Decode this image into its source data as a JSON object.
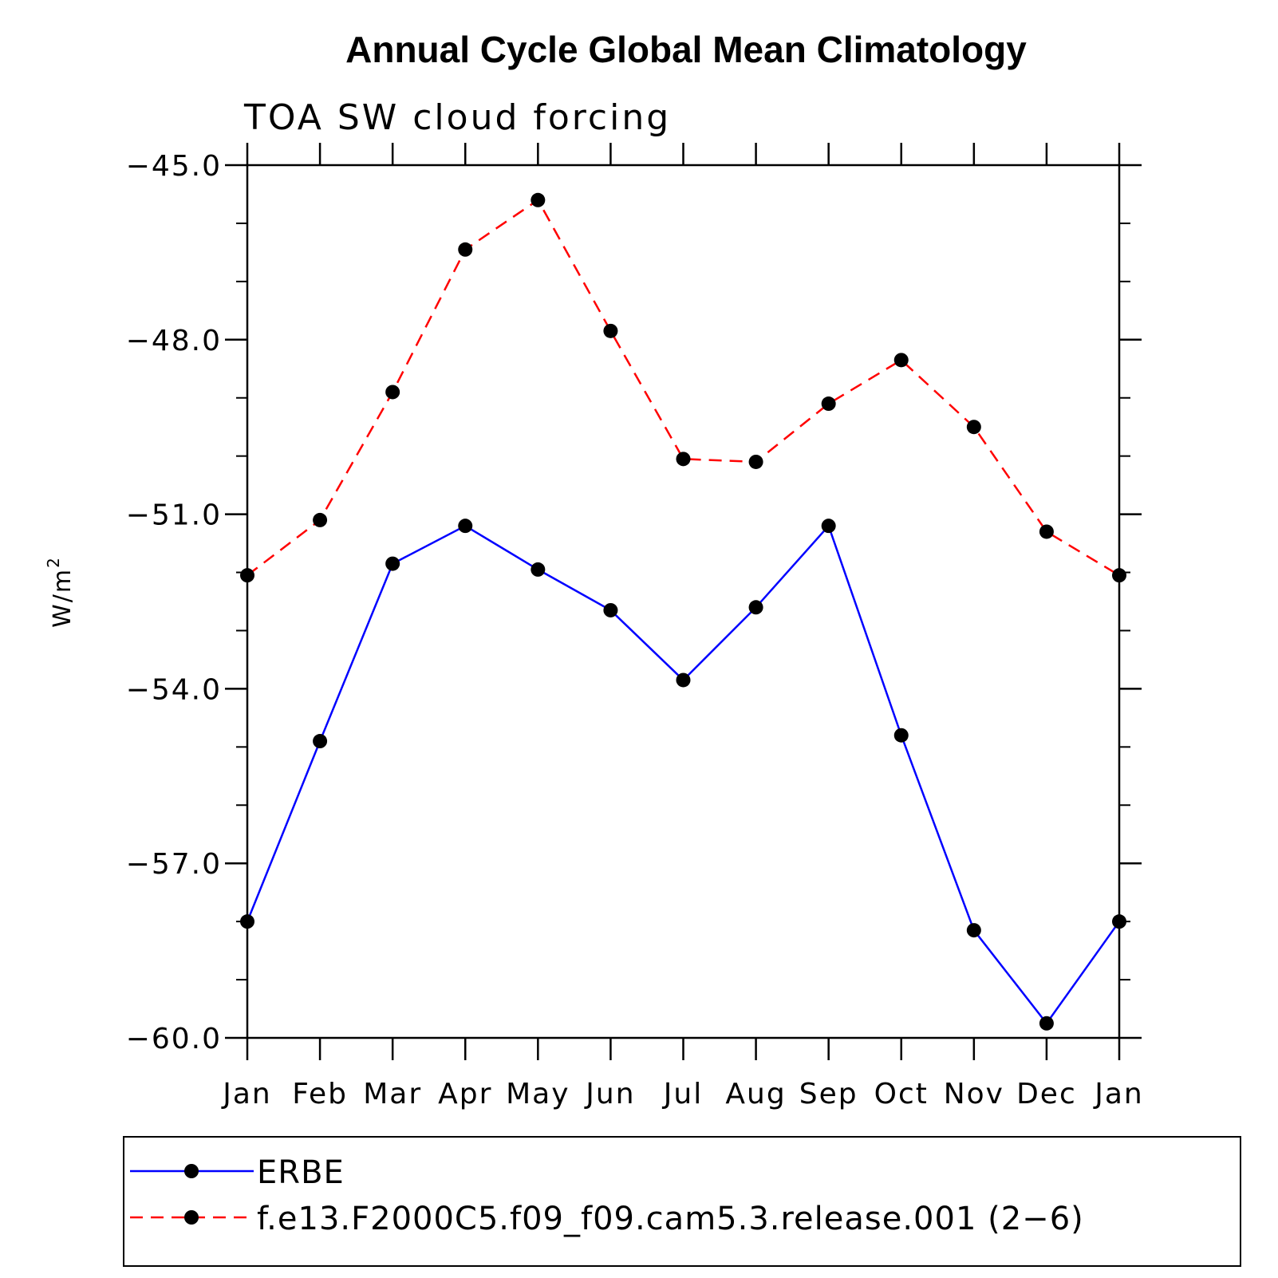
{
  "chart_data": {
    "type": "line",
    "title": "Annual Cycle Global Mean Climatology",
    "subtitle": "TOA SW cloud forcing",
    "ylabel": "W/m",
    "ylabel_superscript": "2",
    "xlabel": "",
    "categories": [
      "Jan",
      "Feb",
      "Mar",
      "Apr",
      "May",
      "Jun",
      "Jul",
      "Aug",
      "Sep",
      "Oct",
      "Nov",
      "Dec",
      "Jan"
    ],
    "ylim": [
      -60.0,
      -45.0
    ],
    "yticks": [
      -45.0,
      -48.0,
      -51.0,
      -54.0,
      -57.0,
      -60.0
    ],
    "ytick_labels": [
      "−45.0",
      "−48.0",
      "−51.0",
      "−54.0",
      "−57.0",
      "−60.0"
    ],
    "ytick_minor_step": 1.0,
    "grid": false,
    "legend_position": "bottom",
    "series": [
      {
        "name": "ERBE",
        "color": "#0000ff",
        "dash": "solid",
        "marker": "filled-circle",
        "values": [
          -58.0,
          -54.9,
          -51.85,
          -51.2,
          -51.95,
          -52.65,
          -53.85,
          -52.6,
          -51.2,
          -54.8,
          -58.15,
          -59.75,
          -58.0
        ]
      },
      {
        "name": "f.e13.F2000C5.f09_f09.cam5.3.release.001 (2−6)",
        "color": "#ff0000",
        "dash": "dashed",
        "marker": "filled-circle",
        "values": [
          -52.05,
          -51.1,
          -48.9,
          -46.45,
          -45.6,
          -47.85,
          -50.05,
          -50.1,
          -49.1,
          -48.35,
          -49.5,
          -51.3,
          -52.05
        ]
      }
    ]
  }
}
